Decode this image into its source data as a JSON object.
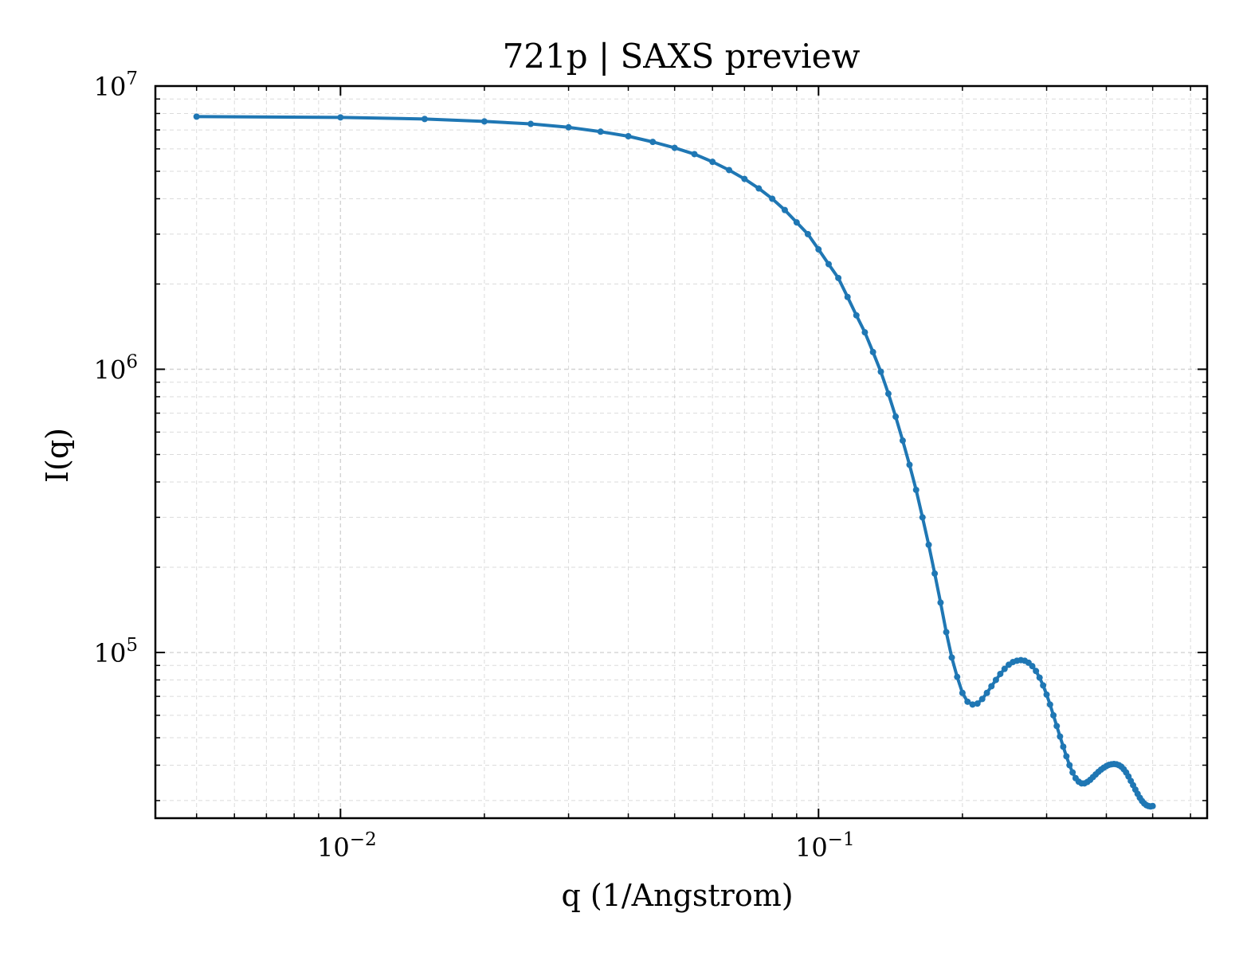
{
  "chart_data": {
    "type": "line",
    "title": "721p | SAXS preview",
    "xlabel": "q (1/Angstrom)",
    "ylabel": "I(q)",
    "xscale": "log",
    "yscale": "log",
    "xlim": [
      0.0041,
      0.65
    ],
    "ylim": [
      26000,
      10000000
    ],
    "grid": true,
    "legend": "none",
    "x_ticks": [
      {
        "value": 0.01,
        "base": "10",
        "exp": "−2"
      },
      {
        "value": 0.1,
        "base": "10",
        "exp": "−1"
      }
    ],
    "y_ticks": [
      {
        "value": 100000,
        "base": "10",
        "exp": "5"
      },
      {
        "value": 1000000,
        "base": "10",
        "exp": "6"
      },
      {
        "value": 10000000,
        "base": "10",
        "exp": "7"
      }
    ],
    "series": [
      {
        "color": "#1f77b4",
        "x": [
          0.005,
          0.01,
          0.015,
          0.02,
          0.025,
          0.03,
          0.035,
          0.04,
          0.045,
          0.05,
          0.055,
          0.06,
          0.065,
          0.07,
          0.075,
          0.08,
          0.085,
          0.09,
          0.095,
          0.1,
          0.105,
          0.11,
          0.115,
          0.12,
          0.125,
          0.13,
          0.135,
          0.14,
          0.145,
          0.15,
          0.155,
          0.16,
          0.165,
          0.17,
          0.175,
          0.18,
          0.185,
          0.19,
          0.195,
          0.2,
          0.205,
          0.21,
          0.215,
          0.22,
          0.225,
          0.23,
          0.235,
          0.24,
          0.245,
          0.25,
          0.255,
          0.26,
          0.265,
          0.27,
          0.275,
          0.28,
          0.285,
          0.29,
          0.295,
          0.3,
          0.305,
          0.31,
          0.315,
          0.32,
          0.325,
          0.33,
          0.335,
          0.34,
          0.345,
          0.35,
          0.355,
          0.36,
          0.365,
          0.37,
          0.375,
          0.38,
          0.385,
          0.39,
          0.395,
          0.4,
          0.405,
          0.41,
          0.415,
          0.42,
          0.425,
          0.43,
          0.435,
          0.44,
          0.445,
          0.45,
          0.455,
          0.46,
          0.465,
          0.47,
          0.475,
          0.48,
          0.485,
          0.49,
          0.495,
          0.5
        ],
        "y": [
          7800000,
          7750000,
          7650000,
          7500000,
          7350000,
          7150000,
          6900000,
          6650000,
          6350000,
          6050000,
          5750000,
          5400000,
          5050000,
          4700000,
          4350000,
          4000000,
          3650000,
          3300000,
          3000000,
          2650000,
          2350000,
          2100000,
          1800000,
          1550000,
          1350000,
          1150000,
          980000,
          820000,
          680000,
          560000,
          460000,
          375000,
          300000,
          240000,
          190000,
          150000,
          118000,
          96000,
          82000,
          72000,
          67000,
          65500,
          66000,
          68500,
          72000,
          76000,
          80000,
          84000,
          87500,
          90500,
          92500,
          93500,
          94000,
          93500,
          92000,
          89500,
          86000,
          81500,
          76500,
          71000,
          65500,
          60000,
          55000,
          50500,
          46500,
          43000,
          40000,
          37700,
          36000,
          35000,
          34500,
          34500,
          34900,
          35500,
          36300,
          37100,
          37900,
          38600,
          39200,
          39700,
          40100,
          40300,
          40400,
          40300,
          40000,
          39500,
          38700,
          37700,
          36500,
          35200,
          34000,
          32800,
          31700,
          30700,
          29900,
          29300,
          28900,
          28700,
          28600,
          28700
        ]
      }
    ]
  }
}
